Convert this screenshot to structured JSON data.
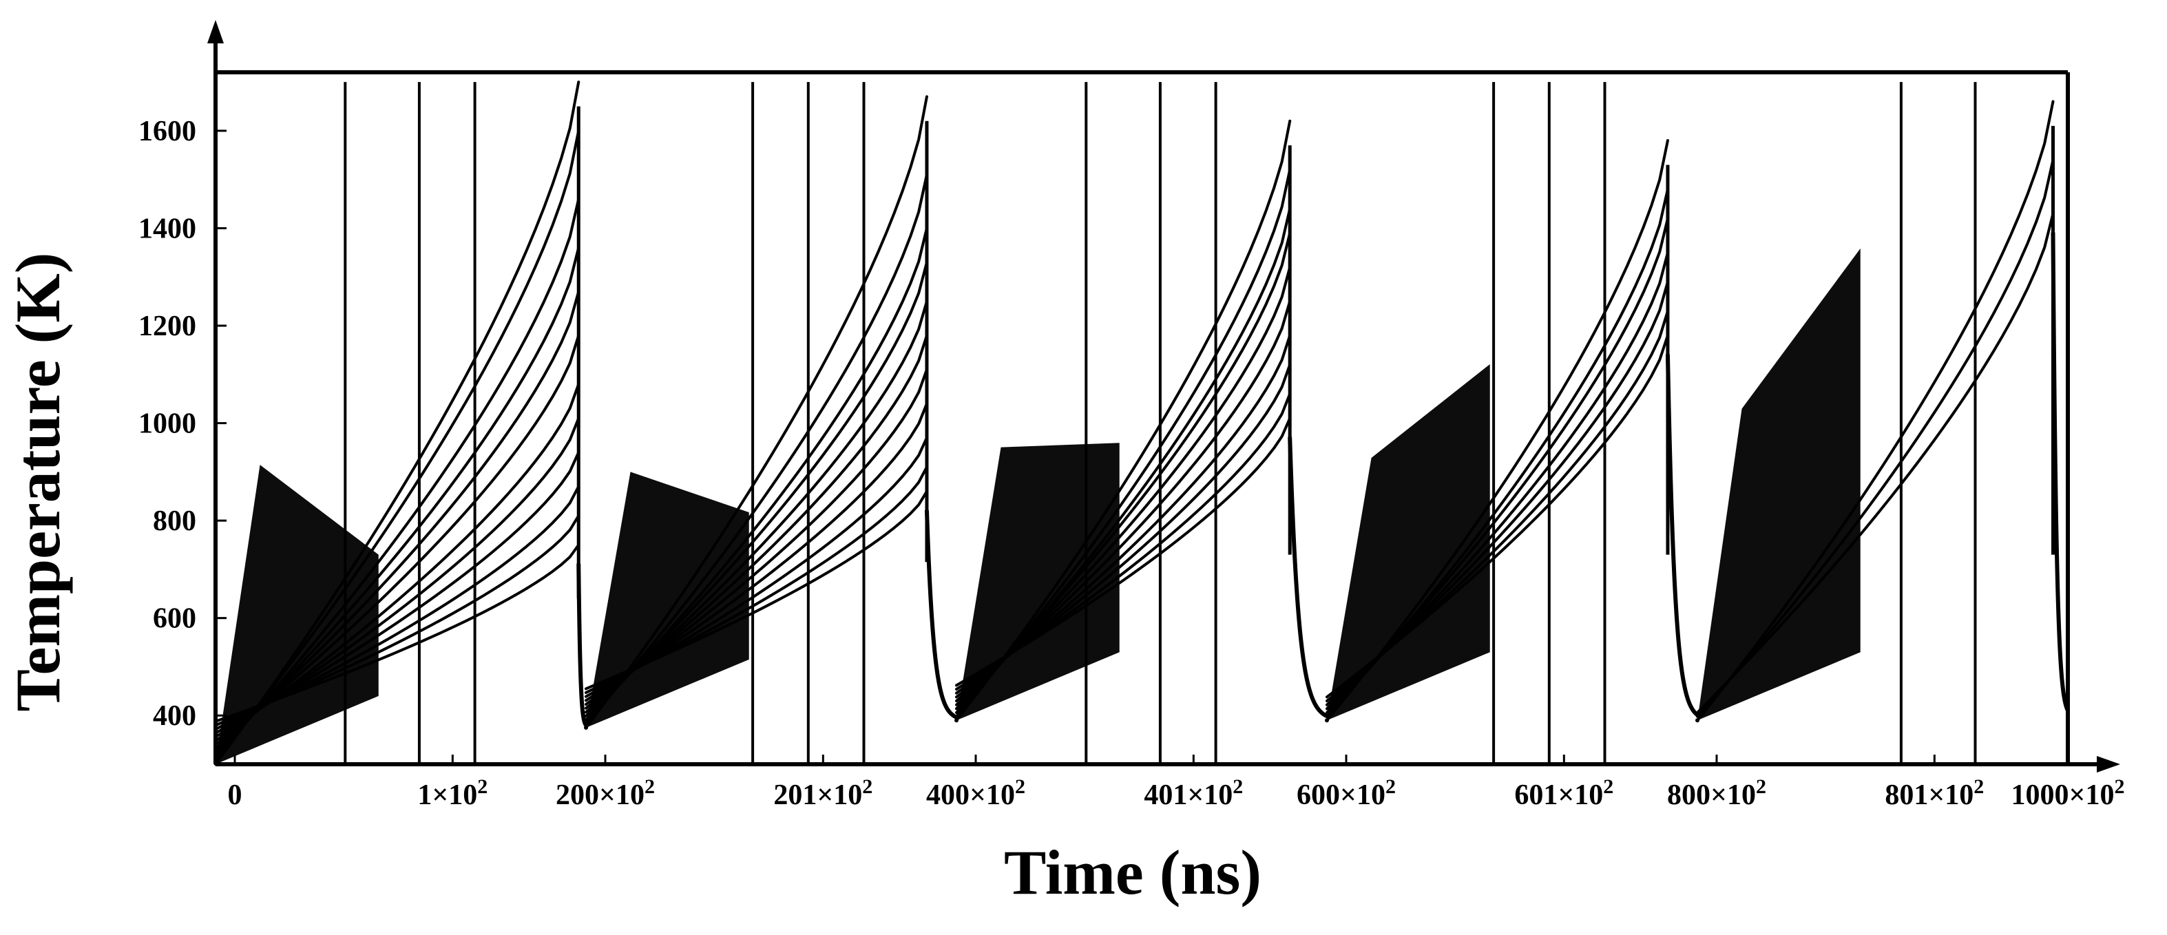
{
  "chart_data": {
    "type": "line",
    "title": "",
    "xlabel": "Time (ns)",
    "ylabel": "Temperature (K)",
    "ylim": [
      300,
      1720
    ],
    "grid": false,
    "legend": "none",
    "colors": {
      "line": "#000000",
      "axis": "#000000",
      "background": "#ffffff"
    },
    "x_tick_labels": [
      {
        "base": "0",
        "exp": ""
      },
      {
        "base": "1×10",
        "exp": "2"
      },
      {
        "base": "200×10",
        "exp": "2"
      },
      {
        "base": "201×10",
        "exp": "2"
      },
      {
        "base": "400×10",
        "exp": "2"
      },
      {
        "base": "401×10",
        "exp": "2"
      },
      {
        "base": "600×10",
        "exp": "2"
      },
      {
        "base": "601×10",
        "exp": "2"
      },
      {
        "base": "800×10",
        "exp": "2"
      },
      {
        "base": "801×10",
        "exp": "2"
      },
      {
        "base": "1000×10",
        "exp": "2"
      }
    ],
    "y_ticks": [
      400,
      600,
      800,
      1000,
      1200,
      1400,
      1600
    ],
    "y_tick_labels": [
      "400",
      "600",
      "800",
      "1000",
      "1200",
      "1400",
      "1600"
    ],
    "segment_duration_units": 100,
    "baseline_temperature": 300,
    "pulses": [
      {
        "segment": "0–1×10^2",
        "start_temp": 300,
        "pulse_end": 98,
        "min_temp_before_next": 375,
        "melt_temp": 1700,
        "melt_reset_times": [
          35,
          55,
          70
        ],
        "layer_peak_temps": [
          1700,
          1600,
          1460,
          1360,
          1270,
          1180,
          1080,
          1010,
          940,
          870,
          810,
          750
        ]
      },
      {
        "segment": "200×10^2–201×10^2",
        "start_temp": 375,
        "pulse_end": 92,
        "min_temp_before_next": 390,
        "melt_temp": 1700,
        "melt_reset_times": [
          45,
          60,
          75
        ],
        "layer_peak_temps": [
          1670,
          1510,
          1400,
          1330,
          1250,
          1180,
          1110,
          1040,
          970,
          910,
          860
        ]
      },
      {
        "segment": "400×10^2–401×10^2",
        "start_temp": 390,
        "pulse_end": 90,
        "min_temp_before_next": 390,
        "melt_temp": 1700,
        "melt_reset_times": [
          35,
          55,
          70
        ],
        "layer_peak_temps": [
          1620,
          1520,
          1440,
          1390,
          1320,
          1250,
          1180,
          1120,
          1060,
          1010
        ]
      },
      {
        "segment": "600×10^2–601×10^2",
        "start_temp": 390,
        "pulse_end": 92,
        "min_temp_before_next": 390,
        "melt_temp": 1700,
        "melt_reset_times": [
          45,
          60,
          75
        ],
        "layer_peak_temps": [
          1580,
          1480,
          1420,
          1350,
          1290,
          1230,
          1180
        ]
      },
      {
        "segment": "800×10^2–801×10^2",
        "start_temp": 390,
        "pulse_end": 96,
        "min_temp_before_next": 395,
        "melt_temp": 1700,
        "melt_reset_times": [
          55,
          75
        ],
        "layer_peak_temps": [
          1660,
          1540,
          1430
        ]
      }
    ]
  }
}
